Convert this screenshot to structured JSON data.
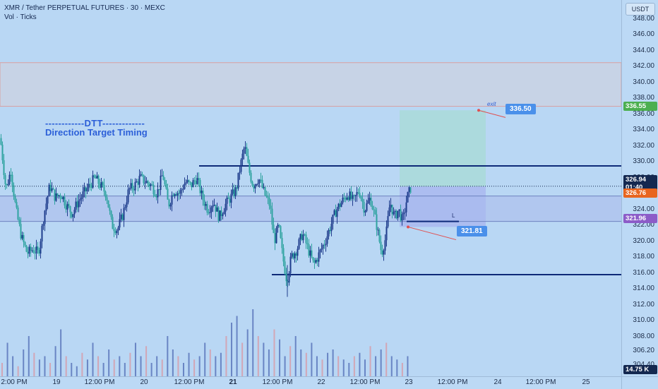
{
  "chart_header": {
    "symbol_line": "XMR / Tether PERPETUAL FUTURES · 30 · MEXC",
    "indicator_line": "Vol · Ticks"
  },
  "currency_button": "USDT",
  "annotation": {
    "line1": "------------DTT-------------",
    "line2": "Direction Target Timing"
  },
  "labels": {
    "target_price": "336.50",
    "stop_price": "321.81",
    "exit_text": "exit",
    "l_text": "L"
  },
  "price_tags": {
    "green": "336.55",
    "last_price": "326.94",
    "countdown": "01:40",
    "orange": "326.76",
    "purple": "321.96",
    "volume": "14.75 K"
  },
  "colors": {
    "background": "#b9d7f4",
    "up_candle": "#1e3c8c",
    "down_candle": "#2fa3a0",
    "level_line": "#0e2a78",
    "green_tag": "#4caf50",
    "orange_tag": "#e8651f",
    "purple_tag": "#8c5cc8",
    "navy_tag": "#142850",
    "target_zone": "#a9dad8",
    "stop_zone": "#a9b8ee"
  },
  "chart_data": {
    "type": "candlestick",
    "title": "XMR / Tether PERPETUAL FUTURES · 30 · MEXC",
    "y_ticks": [
      "348.00",
      "346.00",
      "344.00",
      "342.00",
      "340.00",
      "338.00",
      "336.00",
      "334.00",
      "332.00",
      "330.00",
      "328.00",
      "326.00",
      "324.00",
      "322.00",
      "320.00",
      "318.00",
      "316.00",
      "314.00",
      "312.00",
      "310.00",
      "308.00",
      "306.20",
      "304.40"
    ],
    "ylim": [
      303,
      349.5
    ],
    "x_ticks": [
      {
        "label": "2:00 PM",
        "bold": false
      },
      {
        "label": "19",
        "bold": false
      },
      {
        "label": "12:00 PM",
        "bold": false
      },
      {
        "label": "20",
        "bold": false
      },
      {
        "label": "12:00 PM",
        "bold": false
      },
      {
        "label": "21",
        "bold": true
      },
      {
        "label": "12:00 PM",
        "bold": false
      },
      {
        "label": "22",
        "bold": false
      },
      {
        "label": "12:00 PM",
        "bold": false
      },
      {
        "label": "23",
        "bold": false
      },
      {
        "label": "12:00 PM",
        "bold": false
      },
      {
        "label": "24",
        "bold": false
      },
      {
        "label": "12:00 PM",
        "bold": false
      },
      {
        "label": "25",
        "bold": false
      }
    ],
    "horizontal_levels": [
      329.5,
      325.7,
      322.5,
      315.8
    ],
    "supply_zone": [
      337.0,
      342.5
    ],
    "target_price": 336.5,
    "stop_price": 321.81,
    "close_path": [
      [
        0,
        333.0
      ],
      [
        8,
        326.5
      ],
      [
        15,
        329.0
      ],
      [
        22,
        324.0
      ],
      [
        30,
        320.5
      ],
      [
        38,
        318.5
      ],
      [
        46,
        319.0
      ],
      [
        54,
        318.5
      ],
      [
        62,
        323.5
      ],
      [
        70,
        327.0
      ],
      [
        78,
        325.5
      ],
      [
        86,
        326.0
      ],
      [
        94,
        324.5
      ],
      [
        102,
        323.5
      ],
      [
        110,
        325.0
      ],
      [
        118,
        326.0
      ],
      [
        126,
        327.0
      ],
      [
        134,
        328.0
      ],
      [
        142,
        327.0
      ],
      [
        150,
        326.0
      ],
      [
        158,
        322.0
      ],
      [
        166,
        321.5
      ],
      [
        174,
        323.5
      ],
      [
        182,
        326.5
      ],
      [
        190,
        327.0
      ],
      [
        198,
        328.0
      ],
      [
        206,
        327.5
      ],
      [
        214,
        327.0
      ],
      [
        222,
        326.0
      ],
      [
        230,
        328.5
      ],
      [
        238,
        324.5
      ],
      [
        246,
        326.5
      ],
      [
        254,
        326.0
      ],
      [
        262,
        327.5
      ],
      [
        270,
        327.0
      ],
      [
        278,
        328.0
      ],
      [
        286,
        325.5
      ],
      [
        294,
        324.0
      ],
      [
        302,
        325.0
      ],
      [
        310,
        323.0
      ],
      [
        318,
        324.5
      ],
      [
        326,
        325.5
      ],
      [
        334,
        326.5
      ],
      [
        340,
        329.5
      ],
      [
        346,
        332.0
      ],
      [
        352,
        329.0
      ],
      [
        358,
        327.0
      ],
      [
        366,
        328.0
      ],
      [
        374,
        326.0
      ],
      [
        382,
        324.5
      ],
      [
        388,
        320.0
      ],
      [
        394,
        322.0
      ],
      [
        400,
        318.0
      ],
      [
        406,
        315.0
      ],
      [
        412,
        318.0
      ],
      [
        420,
        319.0
      ],
      [
        428,
        321.0
      ],
      [
        436,
        319.0
      ],
      [
        444,
        317.0
      ],
      [
        452,
        318.5
      ],
      [
        460,
        320.0
      ],
      [
        468,
        322.0
      ],
      [
        476,
        324.0
      ],
      [
        484,
        325.0
      ],
      [
        492,
        326.0
      ],
      [
        500,
        325.0
      ],
      [
        508,
        326.5
      ],
      [
        516,
        324.0
      ],
      [
        524,
        325.5
      ],
      [
        532,
        322.5
      ],
      [
        540,
        318.5
      ],
      [
        546,
        320.5
      ],
      [
        552,
        325.0
      ],
      [
        558,
        323.0
      ],
      [
        564,
        324.0
      ],
      [
        570,
        322.5
      ],
      [
        576,
        325.5
      ],
      [
        582,
        326.9
      ]
    ],
    "volume_relative": [
      0.2,
      0.5,
      0.3,
      0.15,
      0.4,
      0.6,
      0.35,
      0.25,
      0.3,
      0.2,
      0.45,
      0.7,
      0.3,
      0.2,
      0.15,
      0.35,
      0.25,
      0.5,
      0.3,
      0.2,
      0.4,
      0.25,
      0.3,
      0.2,
      0.35,
      0.5,
      0.3,
      0.45,
      0.2,
      0.3,
      0.25,
      0.6,
      0.4,
      0.3,
      0.2,
      0.35,
      0.25,
      0.3,
      0.5,
      0.4,
      0.3,
      0.35,
      0.6,
      0.8,
      0.9,
      0.5,
      0.7,
      1.0,
      0.6,
      0.5,
      0.4,
      0.7,
      0.55,
      0.3,
      0.45,
      0.6,
      0.4,
      0.35,
      0.5,
      0.3,
      0.25,
      0.35,
      0.4,
      0.3,
      0.25,
      0.2,
      0.3,
      0.35,
      0.25,
      0.45,
      0.3,
      0.4,
      0.5,
      0.3,
      0.25,
      0.2,
      0.3
    ]
  }
}
